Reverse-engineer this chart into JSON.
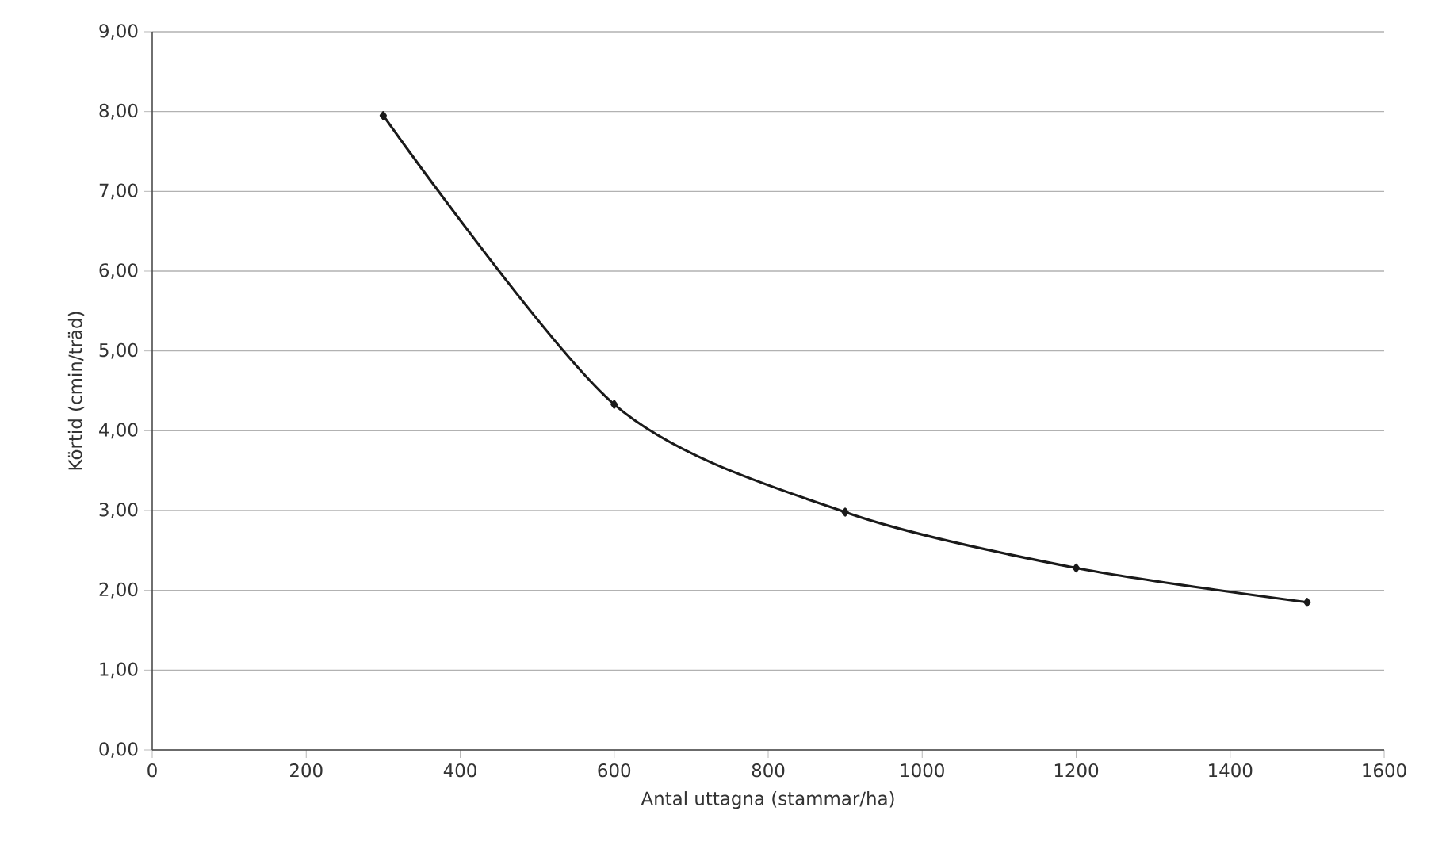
{
  "chart_data": {
    "type": "line",
    "xlabel": "Antal uttagna (stammar/ha)",
    "ylabel": "Körtid (cmin/träd)",
    "x": [
      300,
      600,
      900,
      1200,
      1500
    ],
    "series": [
      {
        "color": "#1a1a1a",
        "values": [
          7.95,
          4.33,
          2.98,
          2.28,
          1.85
        ]
      }
    ],
    "xlim": [
      0,
      1600
    ],
    "xticks": [
      0,
      200,
      400,
      600,
      800,
      1000,
      1200,
      1400,
      1600
    ],
    "ylim": [
      0,
      9
    ],
    "yticks": [
      {
        "value": 0,
        "label": "0,00"
      },
      {
        "value": 1,
        "label": "1,00"
      },
      {
        "value": 2,
        "label": "2,00"
      },
      {
        "value": 3,
        "label": "3,00"
      },
      {
        "value": 4,
        "label": "4,00"
      },
      {
        "value": 5,
        "label": "5,00"
      },
      {
        "value": 6,
        "label": "6,00"
      },
      {
        "value": 7,
        "label": "7,00"
      },
      {
        "value": 8,
        "label": "8,00"
      },
      {
        "value": 9,
        "label": "9,00"
      }
    ],
    "grid": "y",
    "marker": "diamond",
    "line_style": "solid"
  }
}
